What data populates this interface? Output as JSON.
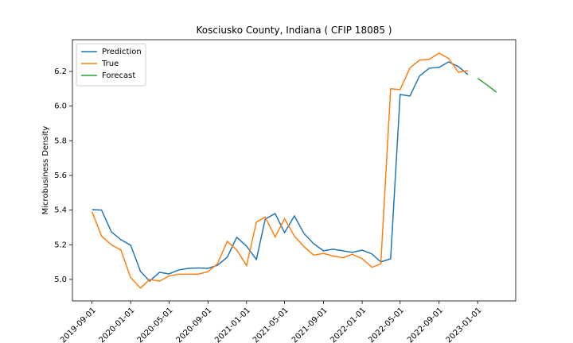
{
  "chart_data": {
    "type": "line",
    "title": "Kosciusko County, Indiana ( CFIP 18085 )",
    "ylabel": "Microbusiness Density",
    "series": [
      {
        "name": "Prediction",
        "color": "#1f77b4",
        "x": [
          "2019-09-01",
          "2019-10-01",
          "2019-11-01",
          "2019-12-01",
          "2020-01-01",
          "2020-02-01",
          "2020-03-01",
          "2020-04-01",
          "2020-05-01",
          "2020-06-01",
          "2020-07-01",
          "2020-08-01",
          "2020-09-01",
          "2020-10-01",
          "2020-11-01",
          "2020-12-01",
          "2021-01-01",
          "2021-02-01",
          "2021-03-01",
          "2021-04-01",
          "2021-05-01",
          "2021-06-01",
          "2021-07-01",
          "2021-08-01",
          "2021-09-01",
          "2021-10-01",
          "2021-11-01",
          "2021-12-01",
          "2022-01-01",
          "2022-02-01",
          "2022-03-01",
          "2022-04-01",
          "2022-05-01",
          "2022-06-01",
          "2022-07-01",
          "2022-08-01",
          "2022-09-01",
          "2022-10-01",
          "2022-11-01",
          "2022-12-01"
        ],
        "values": [
          5.403,
          5.4,
          5.275,
          5.229,
          5.197,
          5.046,
          4.99,
          5.041,
          5.032,
          5.055,
          5.064,
          5.066,
          5.064,
          5.082,
          5.128,
          5.243,
          5.192,
          5.115,
          5.348,
          5.38,
          5.27,
          5.366,
          5.266,
          5.206,
          5.165,
          5.174,
          5.165,
          5.156,
          5.169,
          5.147,
          5.101,
          5.119,
          6.067,
          6.058,
          6.173,
          6.219,
          6.223,
          6.255,
          6.228,
          6.182
        ]
      },
      {
        "name": "True",
        "color": "#ff7f0e",
        "x": [
          "2019-09-01",
          "2019-10-01",
          "2019-11-01",
          "2019-12-01",
          "2020-01-01",
          "2020-02-01",
          "2020-03-01",
          "2020-04-01",
          "2020-05-01",
          "2020-06-01",
          "2020-07-01",
          "2020-08-01",
          "2020-09-01",
          "2020-10-01",
          "2020-11-01",
          "2020-12-01",
          "2021-01-01",
          "2021-02-01",
          "2021-03-01",
          "2021-04-01",
          "2021-05-01",
          "2021-06-01",
          "2021-07-01",
          "2021-08-01",
          "2021-09-01",
          "2021-10-01",
          "2021-11-01",
          "2021-12-01",
          "2022-01-01",
          "2022-02-01",
          "2022-03-01",
          "2022-04-01",
          "2022-05-01",
          "2022-06-01",
          "2022-07-01",
          "2022-08-01",
          "2022-09-01",
          "2022-10-01",
          "2022-11-01",
          "2022-12-01"
        ],
        "values": [
          5.39,
          5.25,
          5.2,
          5.17,
          5.01,
          4.95,
          5.0,
          4.99,
          5.02,
          5.03,
          5.03,
          5.03,
          5.045,
          5.09,
          5.22,
          5.17,
          5.08,
          5.33,
          5.36,
          5.245,
          5.35,
          5.25,
          5.19,
          5.14,
          5.15,
          5.135,
          5.125,
          5.145,
          5.12,
          5.07,
          5.09,
          6.1,
          6.095,
          6.22,
          6.265,
          6.27,
          6.305,
          6.275,
          6.195,
          6.205
        ]
      },
      {
        "name": "Forecast",
        "color": "#2ca02c",
        "x": [
          "2023-01-01",
          "2023-02-01",
          "2023-03-01"
        ],
        "values": [
          6.16,
          6.12,
          6.08
        ]
      }
    ],
    "xlim": [
      "2019-07-01",
      "2023-05-01"
    ],
    "xticks": [
      "2019-09-01",
      "2020-01-01",
      "2020-05-01",
      "2020-09-01",
      "2021-01-01",
      "2021-05-01",
      "2021-09-01",
      "2022-01-01",
      "2022-05-01",
      "2022-09-01",
      "2023-01-01"
    ],
    "ylim": [
      4.876,
      6.383
    ],
    "yticks": [
      {
        "value": 5,
        "label": "5.0"
      },
      {
        "value": 5.2,
        "label": "5.2"
      },
      {
        "value": 5.4,
        "label": "5.4"
      },
      {
        "value": 5.6,
        "label": "5.6"
      },
      {
        "value": 5.8,
        "label": "5.8"
      },
      {
        "value": 6,
        "label": "6.0"
      },
      {
        "value": 6.2,
        "label": "6.2"
      }
    ],
    "legend": "upper left"
  }
}
